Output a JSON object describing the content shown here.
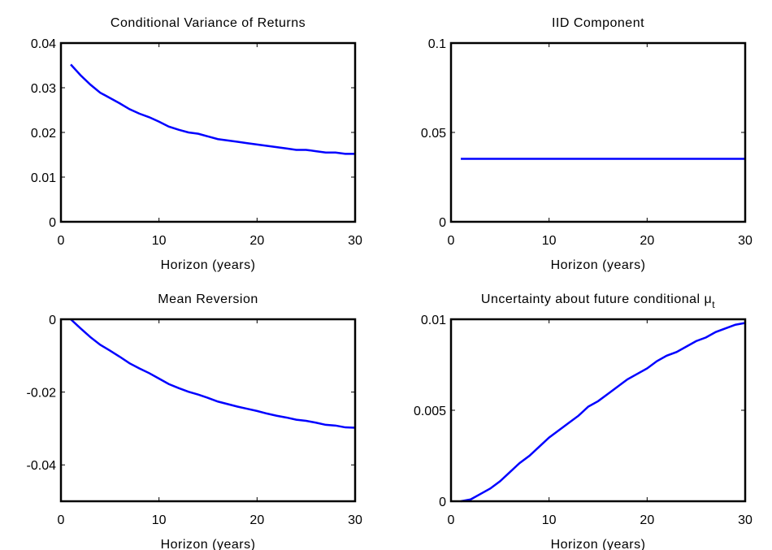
{
  "chart_data": [
    {
      "type": "line",
      "title": "Conditional Variance of Returns",
      "xlabel": "Horizon (years)",
      "x": [
        1,
        2,
        3,
        4,
        5,
        6,
        7,
        8,
        9,
        10,
        11,
        12,
        13,
        14,
        15,
        16,
        17,
        18,
        19,
        20,
        21,
        22,
        23,
        24,
        25,
        26,
        27,
        28,
        29,
        30
      ],
      "values": [
        0.0352,
        0.0328,
        0.0307,
        0.0289,
        0.0277,
        0.0265,
        0.0252,
        0.0242,
        0.0234,
        0.0224,
        0.0213,
        0.0206,
        0.02,
        0.0197,
        0.0191,
        0.0185,
        0.0182,
        0.0179,
        0.0176,
        0.0173,
        0.017,
        0.0167,
        0.0164,
        0.0161,
        0.0161,
        0.0158,
        0.0155,
        0.0155,
        0.0152,
        0.0152
      ],
      "color": "#0000ff",
      "xlim": [
        0,
        30
      ],
      "xticks": [
        0,
        10,
        20,
        30
      ],
      "ylim": [
        0,
        0.04
      ],
      "yticks": [
        0,
        0.01,
        0.02,
        0.03,
        0.04
      ]
    },
    {
      "type": "line",
      "title": "IID Component",
      "xlabel": "Horizon (years)",
      "x": [
        1,
        2,
        3,
        4,
        5,
        6,
        7,
        8,
        9,
        10,
        11,
        12,
        13,
        14,
        15,
        16,
        17,
        18,
        19,
        20,
        21,
        22,
        23,
        24,
        25,
        26,
        27,
        28,
        29,
        30
      ],
      "values": [
        0.0352,
        0.0352,
        0.0352,
        0.0352,
        0.0352,
        0.0352,
        0.0352,
        0.0352,
        0.0352,
        0.0352,
        0.0352,
        0.0352,
        0.0352,
        0.0352,
        0.0352,
        0.0352,
        0.0352,
        0.0352,
        0.0352,
        0.0352,
        0.0352,
        0.0352,
        0.0352,
        0.0352,
        0.0352,
        0.0352,
        0.0352,
        0.0352,
        0.0352,
        0.0352
      ],
      "color": "#0000ff",
      "xlim": [
        0,
        30
      ],
      "xticks": [
        0,
        10,
        20,
        30
      ],
      "ylim": [
        0,
        0.1
      ],
      "yticks": [
        0,
        0.05,
        0.1
      ]
    },
    {
      "type": "line",
      "title": "Mean Reversion",
      "xlabel": "Horizon (years)",
      "x": [
        1,
        2,
        3,
        4,
        5,
        6,
        7,
        8,
        9,
        10,
        11,
        12,
        13,
        14,
        15,
        16,
        17,
        18,
        19,
        20,
        21,
        22,
        23,
        24,
        25,
        26,
        27,
        28,
        29,
        30
      ],
      "values": [
        0,
        -0.0025,
        -0.0049,
        -0.007,
        -0.0086,
        -0.0103,
        -0.0121,
        -0.0135,
        -0.0148,
        -0.0163,
        -0.0178,
        -0.0189,
        -0.0199,
        -0.0207,
        -0.0216,
        -0.0226,
        -0.0233,
        -0.024,
        -0.0246,
        -0.0252,
        -0.0259,
        -0.0265,
        -0.027,
        -0.0276,
        -0.0279,
        -0.0284,
        -0.029,
        -0.0292,
        -0.0297,
        -0.0298
      ],
      "color": "#0000ff",
      "xlim": [
        0,
        30
      ],
      "xticks": [
        0,
        10,
        20,
        30
      ],
      "ylim": [
        -0.05,
        0
      ],
      "yticks": [
        -0.04,
        -0.02,
        0
      ]
    },
    {
      "type": "line",
      "title": "Uncertainty about future conditional μ",
      "title_subscript": "t",
      "xlabel": "Horizon (years)",
      "x": [
        1,
        2,
        3,
        4,
        5,
        6,
        7,
        8,
        9,
        10,
        11,
        12,
        13,
        14,
        15,
        16,
        17,
        18,
        19,
        20,
        21,
        22,
        23,
        24,
        25,
        26,
        27,
        28,
        29,
        30
      ],
      "values": [
        0,
        0.0001,
        0.0004,
        0.0007,
        0.0011,
        0.0016,
        0.0021,
        0.0025,
        0.003,
        0.0035,
        0.0039,
        0.0043,
        0.0047,
        0.0052,
        0.0055,
        0.0059,
        0.0063,
        0.0067,
        0.007,
        0.0073,
        0.0077,
        0.008,
        0.0082,
        0.0085,
        0.0088,
        0.009,
        0.0093,
        0.0095,
        0.0097,
        0.0098
      ],
      "color": "#0000ff",
      "xlim": [
        0,
        30
      ],
      "xticks": [
        0,
        10,
        20,
        30
      ],
      "ylim": [
        0,
        0.01
      ],
      "yticks": [
        0,
        0.005,
        0.01
      ]
    }
  ]
}
